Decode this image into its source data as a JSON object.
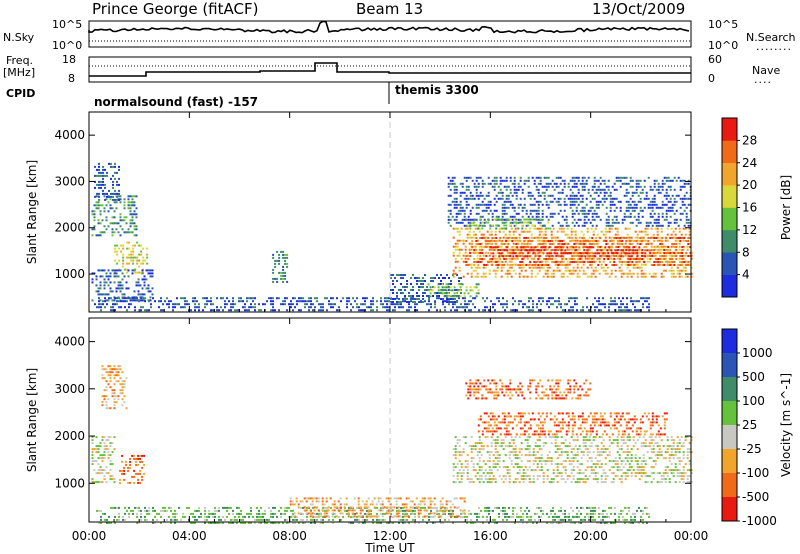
{
  "header": {
    "station": "Prince George (fitACF)",
    "beam": "Beam 13",
    "date": "13/Oct/2009"
  },
  "strips": {
    "nsky_label": "N.Sky",
    "nsky_ticks": [
      "10^5",
      "10^0"
    ],
    "nsearch_label": "N.Search",
    "freq_label_1": "Freq.",
    "freq_label_2": "[MHz]",
    "freq_ticks": [
      "18",
      "8"
    ],
    "nave_label": "Nave",
    "nave_ticks": [
      "60",
      "0"
    ],
    "cpid_label": "CPID",
    "cpid_1": "normalsound (fast) -157",
    "cpid_2": "themis 3300"
  },
  "chart_data": [
    {
      "type": "heatmap",
      "panel": "power",
      "xlabel": "",
      "ylabel": "Slant Range [km]",
      "x_ticks": [
        "00:00",
        "04:00",
        "08:00",
        "12:00",
        "16:00",
        "20:00",
        "00:00"
      ],
      "y_ticks": [
        "1000",
        "2000",
        "3000",
        "4000"
      ],
      "xlim_hours": [
        0,
        24
      ],
      "ylim_km": [
        180,
        4500
      ],
      "colorbar_label": "Power [dB]",
      "colorbar_ticks": [
        "4",
        "8",
        "12",
        "16",
        "20",
        "24",
        "28"
      ],
      "colors": [
        "#1e2ce0",
        "#2a55b4",
        "#3f8b6a",
        "#66c23c",
        "#d8d83a",
        "#f1a52c",
        "#f06a1a",
        "#e81a14"
      ],
      "regions": [
        {
          "t": [
            0.1,
            1.9
          ],
          "r": [
            1800,
            2700
          ],
          "level": 2
        },
        {
          "t": [
            0.2,
            1.2
          ],
          "r": [
            2600,
            3400
          ],
          "level": 1
        },
        {
          "t": [
            1.0,
            2.3
          ],
          "r": [
            1000,
            1700
          ],
          "level": 4
        },
        {
          "t": [
            0.1,
            2.5
          ],
          "r": [
            400,
            1100
          ],
          "level": 1
        },
        {
          "t": [
            0.2,
            22.3
          ],
          "r": [
            180,
            500
          ],
          "level": 1
        },
        {
          "t": [
            7.3,
            7.9
          ],
          "r": [
            800,
            1500
          ],
          "level": 2
        },
        {
          "t": [
            12.0,
            14.8
          ],
          "r": [
            400,
            1000
          ],
          "level": 1
        },
        {
          "t": [
            13.5,
            15.5
          ],
          "r": [
            500,
            800
          ],
          "level": 3
        },
        {
          "t": [
            14.5,
            24.0
          ],
          "r": [
            900,
            2000
          ],
          "level": 5
        },
        {
          "t": [
            15.0,
            24.0
          ],
          "r": [
            1200,
            1800
          ],
          "level": 6
        },
        {
          "t": [
            16.0,
            22.5
          ],
          "r": [
            1400,
            1600
          ],
          "level": 7
        },
        {
          "t": [
            14.3,
            24.0
          ],
          "r": [
            2000,
            3100
          ],
          "level": 1
        },
        {
          "t": [
            15.0,
            18.5
          ],
          "r": [
            2000,
            2200
          ],
          "level": 3
        }
      ]
    },
    {
      "type": "heatmap",
      "panel": "velocity",
      "xlabel": "Time UT",
      "ylabel": "Slant Range [km]",
      "x_ticks": [
        "00:00",
        "04:00",
        "08:00",
        "12:00",
        "16:00",
        "20:00",
        "00:00"
      ],
      "y_ticks": [
        "1000",
        "2000",
        "3000",
        "4000"
      ],
      "xlim_hours": [
        0,
        24
      ],
      "ylim_km": [
        180,
        4500
      ],
      "colorbar_label": "Velocity [m s^-1]",
      "colorbar_ticks": [
        "1000",
        "500",
        "100",
        "25",
        "-25",
        "-100",
        "-500",
        "-1000"
      ],
      "colors": [
        "#1e2ce0",
        "#2a55b4",
        "#3f8b6a",
        "#66c23c",
        "#c8c8c0",
        "#f1a52c",
        "#f06a1a",
        "#e81a14"
      ],
      "regions": [
        {
          "t": [
            0.1,
            1.0
          ],
          "r": [
            1000,
            2000
          ],
          "level": 4
        },
        {
          "t": [
            0.5,
            1.5
          ],
          "r": [
            2600,
            3500
          ],
          "level": 5
        },
        {
          "t": [
            1.2,
            2.2
          ],
          "r": [
            1000,
            1600
          ],
          "level": 6
        },
        {
          "t": [
            0.2,
            22.3
          ],
          "r": [
            180,
            500
          ],
          "level": 3
        },
        {
          "t": [
            8.0,
            15.0
          ],
          "r": [
            300,
            700
          ],
          "level": 5
        },
        {
          "t": [
            14.5,
            24.0
          ],
          "r": [
            1000,
            2000
          ],
          "level": 4
        },
        {
          "t": [
            15.5,
            23.0
          ],
          "r": [
            2000,
            2500
          ],
          "level": 6
        },
        {
          "t": [
            15.0,
            20.0
          ],
          "r": [
            2800,
            3200
          ],
          "level": 6
        }
      ]
    }
  ]
}
